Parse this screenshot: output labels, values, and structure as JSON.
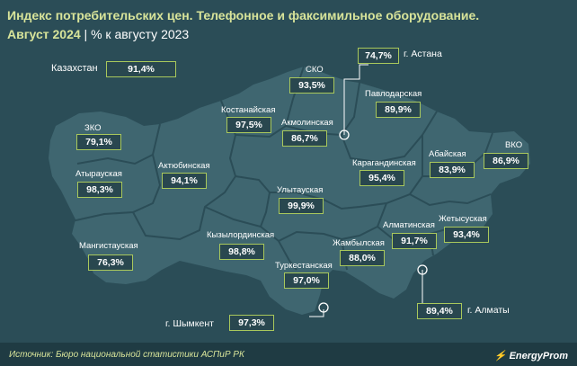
{
  "title": {
    "line1": "Индекс потребительских цен. Телефонное и факсимильное оборудование.",
    "line2_period": "Август 2024",
    "line2_rest": " | % к августу 2023"
  },
  "kazakhstan": {
    "label": "Казахстан",
    "value": "91,4%"
  },
  "regions": [
    {
      "name": "ЗКО",
      "value": "79,1%"
    },
    {
      "name": "Атырауская",
      "value": "98,3%"
    },
    {
      "name": "Мангистауская",
      "value": "76,3%"
    },
    {
      "name": "Актюбинская",
      "value": "94,1%"
    },
    {
      "name": "Костанайская",
      "value": "97,5%"
    },
    {
      "name": "СКО",
      "value": "93,5%"
    },
    {
      "name": "Акмолинская",
      "value": "86,7%"
    },
    {
      "name": "Павлодарская",
      "value": "89,9%"
    },
    {
      "name": "Кызылординская",
      "value": "98,8%"
    },
    {
      "name": "Улытауская",
      "value": "99,9%"
    },
    {
      "name": "Карагандинская",
      "value": "95,4%"
    },
    {
      "name": "Абайская",
      "value": "83,9%"
    },
    {
      "name": "ВКО",
      "value": "86,9%"
    },
    {
      "name": "Туркестанская",
      "value": "97,0%"
    },
    {
      "name": "Жамбылская",
      "value": "88,0%"
    },
    {
      "name": "Алматинская",
      "value": "91,7%"
    },
    {
      "name": "Жетысуская",
      "value": "93,4%"
    }
  ],
  "cities": [
    {
      "name": "г. Астана",
      "value": "74,7%"
    },
    {
      "name": "г. Шымкент",
      "value": "97,3%"
    },
    {
      "name": "г. Алматы",
      "value": "89,4%"
    }
  ],
  "footer": {
    "source": "Источник: Бюро национальной статистики АСПиР РК",
    "logo": "EnergyProm"
  },
  "colors": {
    "background": "#2b4d57",
    "land": "#3f6670",
    "borders": "#2b4d57",
    "accent": "#a9c85c",
    "title": "#d8e49a"
  }
}
